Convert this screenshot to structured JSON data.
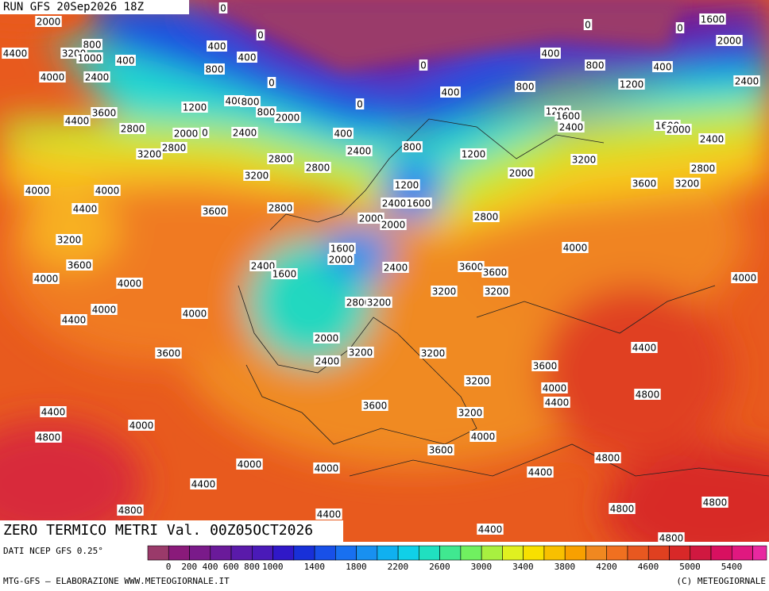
{
  "header": {
    "run": "RUN GFS 20Sep2026 18Z",
    "title": "ZERO TERMICO METRI Val. 00Z05OCT2026"
  },
  "contour_labels": [
    2000,
    0,
    800,
    3200,
    1000,
    400,
    400,
    0,
    400,
    4400,
    800,
    4000,
    2400,
    0,
    0,
    400,
    0,
    400,
    800,
    800,
    1200,
    400,
    0,
    0,
    1600,
    2000,
    2400,
    1200,
    400,
    800,
    800,
    2000,
    3600,
    4400,
    2800,
    2000,
    0,
    2400,
    400,
    2400,
    800,
    1200,
    1200,
    1600,
    2400,
    1600,
    2000,
    2400,
    2800,
    3200,
    2800,
    2800,
    3200,
    3200,
    2000,
    2800,
    3600,
    3200,
    4000,
    4000,
    1200,
    2400,
    1600,
    4400,
    3600,
    2800,
    2000,
    2000,
    2800,
    3200,
    4000,
    1600,
    2000,
    3600,
    2400,
    1600,
    2400,
    3600,
    3600,
    4000,
    4000,
    4000,
    3200,
    3200,
    2800,
    3200,
    4000,
    4000,
    4400,
    2000,
    3600,
    3200,
    3200,
    4400,
    2400,
    3600,
    3200,
    4000,
    4400,
    4800,
    3600,
    3200,
    4400,
    4000,
    4800,
    4000,
    3600,
    4800,
    4000,
    4000,
    4400,
    4400,
    4800,
    4800,
    4800,
    4400,
    4400,
    4800
  ],
  "colorbar": {
    "source": "DATI NCEP GFS 0.25°",
    "labels": [
      0,
      200,
      400,
      600,
      800,
      1000,
      1400,
      1800,
      2200,
      2600,
      3000,
      3400,
      3800,
      4200,
      4600,
      5000,
      5400
    ],
    "colors": [
      "#9a3a6a",
      "#8a1a7a",
      "#7a1a8a",
      "#6a1a9a",
      "#5a1aaa",
      "#4a1ab8",
      "#3018c8",
      "#1830d8",
      "#1850e8",
      "#1870f0",
      "#1890f0",
      "#10b0f0",
      "#10d0e8",
      "#20e0c0",
      "#40e890",
      "#70f060",
      "#a8f040",
      "#e0f020",
      "#f8e000",
      "#f8c000",
      "#f8a000",
      "#f08820",
      "#f07020",
      "#e85820",
      "#e04020",
      "#d82828",
      "#d01840",
      "#d81060",
      "#e01880",
      "#e828a0"
    ]
  },
  "footer": {
    "left": "MTG-GFS — ELABORAZIONE WWW.METEOGIORNALE.IT",
    "right": "(C) METEOGIORNALE"
  }
}
